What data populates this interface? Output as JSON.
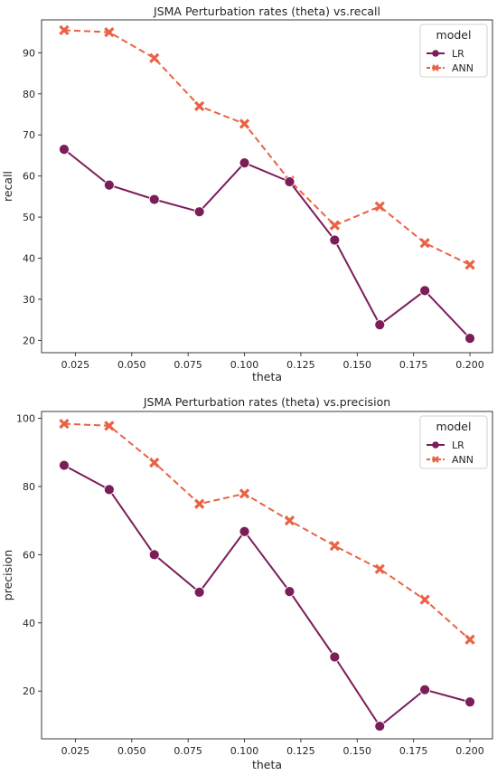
{
  "chart_data": [
    {
      "type": "line",
      "title": "JSMA Perturbation rates (theta) vs.recall",
      "xlabel": "theta",
      "ylabel": "recall",
      "x": [
        0.02,
        0.04,
        0.06,
        0.08,
        0.1,
        0.12,
        0.14,
        0.16,
        0.18,
        0.2
      ],
      "xlim": [
        0.01,
        0.21
      ],
      "ylim": [
        17,
        98
      ],
      "xticks": [
        "0.025",
        "0.050",
        "0.075",
        "0.100",
        "0.125",
        "0.150",
        "0.175",
        "0.200"
      ],
      "yticks": [
        "20",
        "30",
        "40",
        "50",
        "60",
        "70",
        "80",
        "90"
      ],
      "legend": {
        "title": "model",
        "position": "top-right"
      },
      "grid": false,
      "series": [
        {
          "name": "LR",
          "color": "#7b1d59",
          "marker": "circle",
          "style": "solid",
          "values": [
            66.5,
            57.8,
            54.3,
            51.3,
            63.2,
            58.6,
            44.4,
            23.8,
            32.1,
            20.5
          ]
        },
        {
          "name": "ANN",
          "color": "#ea6244",
          "marker": "x",
          "style": "dashed",
          "values": [
            95.5,
            95.0,
            88.7,
            77.0,
            72.7,
            58.9,
            48.0,
            52.6,
            43.7,
            38.4
          ]
        }
      ]
    },
    {
      "type": "line",
      "title": "JSMA Perturbation rates (theta) vs.precision",
      "xlabel": "theta",
      "ylabel": "precision",
      "x": [
        0.02,
        0.04,
        0.06,
        0.08,
        0.1,
        0.12,
        0.14,
        0.16,
        0.18,
        0.2
      ],
      "xlim": [
        0.01,
        0.21
      ],
      "ylim": [
        6,
        102
      ],
      "xticks": [
        "0.025",
        "0.050",
        "0.075",
        "0.100",
        "0.125",
        "0.150",
        "0.175",
        "0.200"
      ],
      "yticks": [
        "20",
        "40",
        "60",
        "80",
        "100"
      ],
      "legend": {
        "title": "model",
        "position": "top-right"
      },
      "grid": false,
      "series": [
        {
          "name": "LR",
          "color": "#7b1d59",
          "marker": "circle",
          "style": "solid",
          "values": [
            86.2,
            79.1,
            60.0,
            49.0,
            66.8,
            49.2,
            30.0,
            9.7,
            20.4,
            16.8
          ]
        },
        {
          "name": "ANN",
          "color": "#ea6244",
          "marker": "x",
          "style": "dashed",
          "values": [
            98.4,
            97.8,
            87.0,
            74.9,
            77.9,
            70.0,
            62.6,
            55.8,
            46.8,
            35.1
          ]
        }
      ]
    }
  ]
}
